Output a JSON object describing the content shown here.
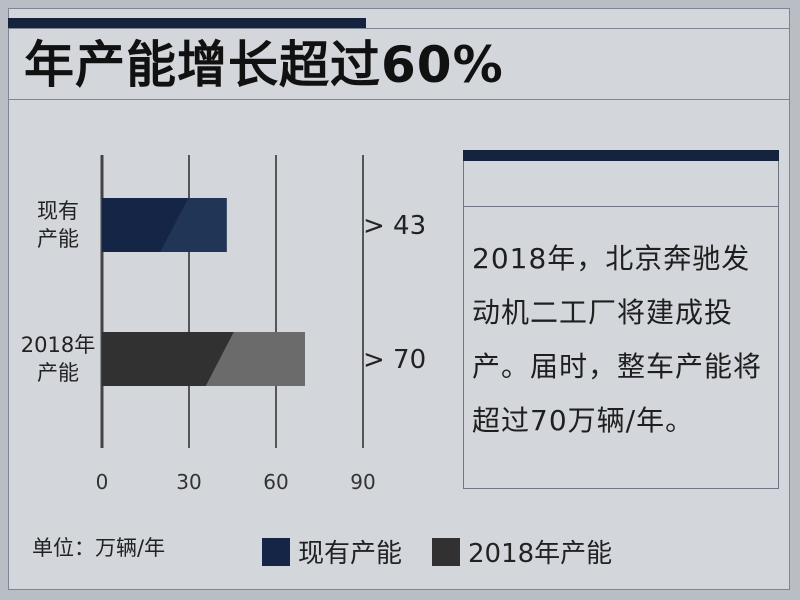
{
  "title": "年产能增长超过60%",
  "colors": {
    "background": "#d3d6db",
    "navy": "#16233f",
    "current_dark": "#152546",
    "current_light": "#213557",
    "future_dark": "#313131",
    "future_light": "#6b6b6b"
  },
  "info": {
    "text": "2018年，北京奔驰发动机二工厂将建成投产。届时，整车产能将超过70万辆/年。"
  },
  "legend": {
    "unit": "单位：万辆/年",
    "items": [
      {
        "label": "现有产能",
        "color": "#152546"
      },
      {
        "label": "2018年产能",
        "color": "#313131"
      }
    ]
  },
  "chart_data": {
    "type": "bar",
    "orientation": "horizontal",
    "categories": [
      [
        "现有",
        "产能"
      ],
      [
        "2018年",
        "产能"
      ]
    ],
    "values": [
      43,
      70
    ],
    "value_labels": [
      "> 43",
      "> 70"
    ],
    "xlim": [
      0,
      90
    ],
    "xticks": [
      0,
      30,
      60,
      90
    ],
    "xtick_labels": [
      "0",
      "30",
      "60",
      "90"
    ],
    "grid": true,
    "series_colors": [
      [
        "#152546",
        "#213557"
      ],
      [
        "#313131",
        "#6b6b6b"
      ]
    ]
  }
}
